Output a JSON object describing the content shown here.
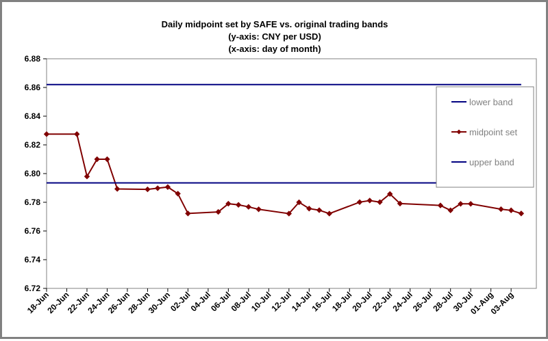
{
  "chart_data": {
    "type": "line",
    "title_lines": [
      "Daily midpoint set by SAFE vs. original trading bands",
      "(y-axis: CNY per USD)",
      "(x-axis: day of month)"
    ],
    "xlabel": "",
    "ylabel": "",
    "ylim": [
      6.72,
      6.88
    ],
    "y_ticks": [
      "6.72",
      "6.74",
      "6.76",
      "6.78",
      "6.80",
      "6.82",
      "6.84",
      "6.86",
      "6.88"
    ],
    "x_range_days": [
      0,
      48.5
    ],
    "x_tick_labels": [
      "18-Jun",
      "20-Jun",
      "22-Jun",
      "24-Jun",
      "26-Jun",
      "28-Jun",
      "30-Jun",
      "02-Jul",
      "04-Jul",
      "06-Jul",
      "08-Jul",
      "10-Jul",
      "12-Jul",
      "14-Jul",
      "16-Jul",
      "18-Jul",
      "20-Jul",
      "22-Jul",
      "24-Jul",
      "26-Jul",
      "28-Jul",
      "30-Jul",
      "01-Aug",
      "03-Aug"
    ],
    "grid": false,
    "legend_position": "right",
    "series": [
      {
        "name": "lower band",
        "color": "#000080",
        "x": [
          "18-Jun",
          "04-Aug"
        ],
        "y": [
          6.862,
          6.862
        ]
      },
      {
        "name": "midpoint set",
        "color": "#800000",
        "marker": "diamond",
        "x": [
          "18-Jun",
          "21-Jun",
          "22-Jun",
          "23-Jun",
          "24-Jun",
          "25-Jun",
          "28-Jun",
          "29-Jun",
          "30-Jun",
          "01-Jul",
          "02-Jul",
          "05-Jul",
          "06-Jul",
          "07-Jul",
          "08-Jul",
          "09-Jul",
          "12-Jul",
          "13-Jul",
          "14-Jul",
          "15-Jul",
          "16-Jul",
          "19-Jul",
          "20-Jul",
          "21-Jul",
          "22-Jul",
          "23-Jul",
          "27-Jul",
          "28-Jul",
          "29-Jul",
          "30-Jul",
          "02-Aug",
          "03-Aug",
          "04-Aug"
        ],
        "y": [
          6.8275,
          6.8275,
          6.798,
          6.81,
          6.81,
          6.7893,
          6.789,
          6.7898,
          6.7906,
          6.786,
          6.7722,
          6.7733,
          6.779,
          6.7782,
          6.7768,
          6.7751,
          6.7721,
          6.78,
          6.7756,
          6.7745,
          6.7721,
          6.7801,
          6.7812,
          6.7801,
          6.7858,
          6.7791,
          6.7778,
          6.7744,
          6.7789,
          6.7789,
          6.7752,
          6.7744,
          6.7722
        ]
      },
      {
        "name": "upper band",
        "color": "#000080",
        "x": [
          "18-Jun",
          "04-Aug"
        ],
        "y": [
          6.7935,
          6.7935
        ]
      }
    ]
  }
}
